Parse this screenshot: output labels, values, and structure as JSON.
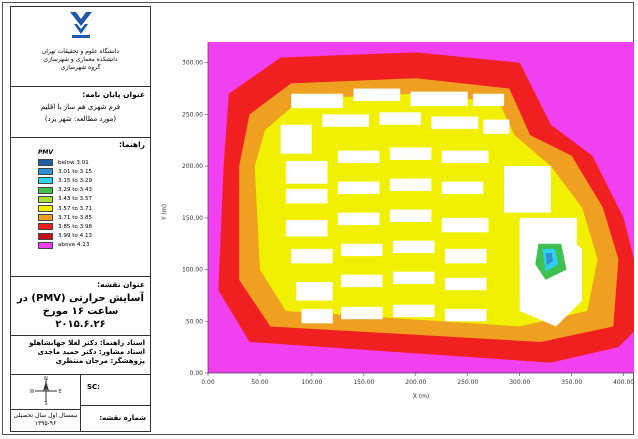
{
  "sidebar": {
    "institution": [
      "دانشگاه علوم و تحقیقات تهران",
      "دانشکده معماری و شهرسازی",
      "گروه شهرسازی"
    ],
    "thesis_heading": "عنوان پایان نامه:",
    "thesis_title": "فرم شهری هم ساز با اقلیم",
    "case_study": "(مورد مطالعه: شهر یزد)",
    "legend_heading": "راهنما:",
    "legend_title": "PMV",
    "legend": [
      {
        "label": "below 3.01",
        "color": "#1f5fa0"
      },
      {
        "label": "3.01 to 3.15",
        "color": "#2f8fd0"
      },
      {
        "label": "3.15 to 3.29",
        "color": "#30d0f0"
      },
      {
        "label": "3.29 to 3.43",
        "color": "#40c050"
      },
      {
        "label": "3.43 to 3.57",
        "color": "#a8e040"
      },
      {
        "label": "3.57 to 3.71",
        "color": "#f0f000"
      },
      {
        "label": "3.71 to 3.85",
        "color": "#f0a020"
      },
      {
        "label": "3.85 to 3.98",
        "color": "#f02020"
      },
      {
        "label": "3.99 to 4.13",
        "color": "#c01010"
      },
      {
        "label": "above 4.13",
        "color": "#f040f0"
      }
    ],
    "map_heading": "عنوان نقشه:",
    "map_title_1": "آسایش حرارتی (PMV) در",
    "map_title_2": "ساعت ۱۶ مورخ ۲۰۱۵.۶.۲۶",
    "advisor_1": "استاد راهنما: دکتر لعلا جهانشاهلو",
    "advisor_2": "استاد مشاور: دکتر حمید ماجدی",
    "researcher": "پژوهشگر: مرجان منتظری",
    "scale_label": "SC:",
    "semester": "نیمسال اول سال تحصیلی",
    "year": "۱۳۹۵-۹۶",
    "sheet_no": "شماره نقشه:",
    "north": "N",
    "west": "W",
    "east": "E",
    "south": "S"
  },
  "chart_data": {
    "type": "heatmap",
    "xlabel": "X (m)",
    "ylabel": "Y (m)",
    "x_ticks": [
      "0.00",
      "50.00",
      "100.00",
      "150.00",
      "200.00",
      "250.00",
      "300.00",
      "350.00",
      "400.00"
    ],
    "y_ticks": [
      "0.00",
      "50.00",
      "100.00",
      "150.00",
      "200.00",
      "250.00",
      "300.00"
    ],
    "xlim": [
      0,
      410
    ],
    "ylim": [
      0,
      320
    ],
    "colors": {
      "magenta": "#f040f0",
      "red": "#f02020",
      "orange": "#f0a020",
      "yellow": "#f0f000",
      "building": "#ffffff"
    }
  }
}
